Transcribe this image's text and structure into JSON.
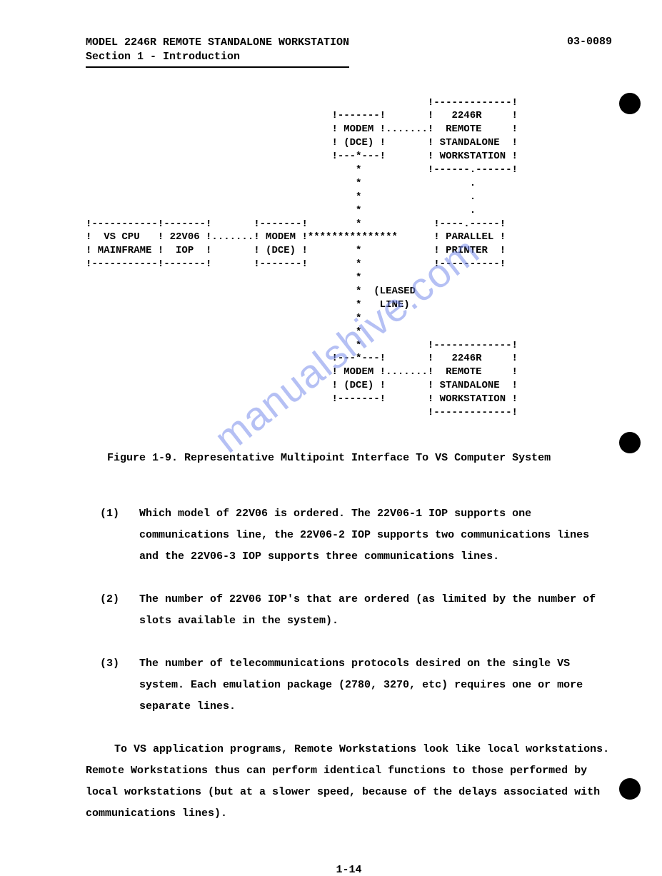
{
  "header": {
    "title_line1": "MODEL 2246R REMOTE STANDALONE WORKSTATION",
    "title_line2": "Section 1 - Introduction",
    "docnum": "03-0089"
  },
  "diagram": {
    "lines": [
      "                                                         !-------------!",
      "                                         !-------!       !   2246R     !",
      "                                         ! MODEM !.......!  REMOTE     !",
      "                                         ! (DCE) !       ! STANDALONE  !",
      "                                         !---*---!       ! WORKSTATION !",
      "                                             *           !------.------!",
      "                                             *                  .",
      "                                             *                  .",
      "                                             *                  .",
      "!-----------!-------!       !-------!        *            !----.-----!",
      "!  VS CPU   ! 22V06 !.......! MODEM !***************      ! PARALLEL !",
      "! MAINFRAME !  IOP  !       ! (DCE) !        *            ! PRINTER  !",
      "!-----------!-------!       !-------!        *            !----------!",
      "                                             *",
      "                                             *  (LEASED",
      "                                             *   LINE)",
      "                                             *",
      "                                             *",
      "                                             *           !-------------!",
      "                                         !---*---!       !   2246R     !",
      "                                         ! MODEM !.......!  REMOTE     !",
      "                                         ! (DCE) !       ! STANDALONE  !",
      "                                         !-------!       ! WORKSTATION !",
      "                                                         !-------------!"
    ]
  },
  "caption": "Figure 1-9.  Representative Multipoint Interface To VS Computer System",
  "list": {
    "items": [
      {
        "num": "(1)",
        "text": "Which model of 22V06 is ordered.  The 22V06-1 IOP supports one communications line, the 22V06-2 IOP supports two communications lines and the 22V06-3 IOP supports three communications lines."
      },
      {
        "num": "(2)",
        "text": "The number of 22V06 IOP's that are ordered (as limited by the number of slots available in the system)."
      },
      {
        "num": "(3)",
        "text": "The number of telecommunications protocols desired on the single VS system.  Each emulation package (2780, 3270, etc) requires one or more separate lines."
      }
    ]
  },
  "paragraph": "To VS application programs, Remote Workstations look like local workstations.  Remote Workstations thus can perform identical functions to those performed by local workstations (but at a slower speed, because of the delays associated with communications lines).",
  "pagenum": "1-14",
  "watermark": "manualshive.com",
  "colors": {
    "text": "#000000",
    "background": "#ffffff",
    "watermark": "rgba(120,140,235,0.55)"
  }
}
